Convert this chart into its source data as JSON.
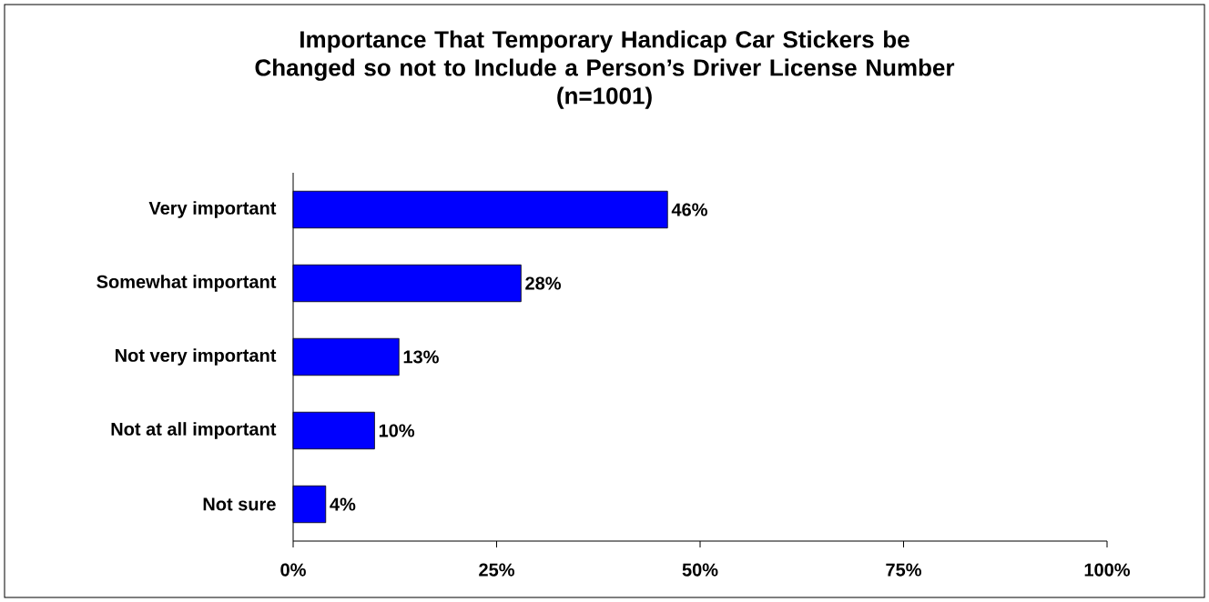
{
  "chart_data": {
    "type": "bar",
    "orientation": "horizontal",
    "title": "Importance That Temporary Handicap Car Stickers be Changed so not to Include a Person’s Driver License Number",
    "subtitle": "(n=1001)",
    "categories": [
      "Very important",
      "Somewhat important",
      "Not very important",
      "Not at all important",
      "Not sure"
    ],
    "values": [
      46,
      28,
      13,
      10,
      4
    ],
    "value_labels": [
      "46%",
      "28%",
      "13%",
      "10%",
      "4%"
    ],
    "color": "#0000ff",
    "xlim": [
      0,
      100
    ],
    "xticks": [
      {
        "value": 0,
        "label": "0%"
      },
      {
        "value": 25,
        "label": "25%"
      },
      {
        "value": 50,
        "label": "50%"
      },
      {
        "value": 75,
        "label": "75%"
      },
      {
        "value": 100,
        "label": "100%"
      }
    ],
    "grid": false
  }
}
